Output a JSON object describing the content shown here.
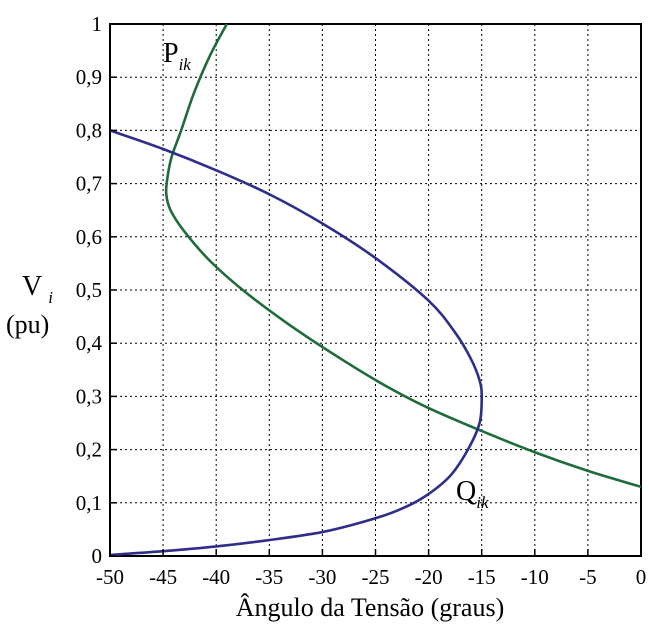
{
  "chart_data": {
    "type": "line",
    "xlabel": "Ângulo da Tensão (graus)",
    "ylabel": "V",
    "ylabel_sub": "i",
    "ylabel_unit": "(pu)",
    "xlim": [
      -50,
      0
    ],
    "ylim": [
      0,
      1
    ],
    "x_ticks": [
      "-50",
      "-45",
      "-40",
      "-35",
      "-30",
      "-25",
      "-20",
      "-15",
      "-10",
      "-5",
      "0"
    ],
    "y_ticks": [
      "0",
      "0,1",
      "0,2",
      "0,3",
      "0,4",
      "0,5",
      "0,6",
      "0,7",
      "0,8",
      "0,9",
      "1"
    ],
    "grid": true,
    "series": [
      {
        "name": "P",
        "name_sub": "ik",
        "color": "#1f6b3a",
        "points": [
          [
            -39,
            1.0
          ],
          [
            -40.6,
            0.94
          ],
          [
            -42.1,
            0.87
          ],
          [
            -43.3,
            0.8
          ],
          [
            -44.2,
            0.75
          ],
          [
            -44.6,
            0.71
          ],
          [
            -44.7,
            0.68
          ],
          [
            -44.3,
            0.65
          ],
          [
            -43.0,
            0.61
          ],
          [
            -40.6,
            0.555
          ],
          [
            -37.5,
            0.5
          ],
          [
            -33.5,
            0.44
          ],
          [
            -29.0,
            0.38
          ],
          [
            -24.5,
            0.325
          ],
          [
            -20.2,
            0.28
          ],
          [
            -15.0,
            0.235
          ],
          [
            -10.0,
            0.195
          ],
          [
            -5.0,
            0.16
          ],
          [
            0.0,
            0.13
          ]
        ]
      },
      {
        "name": "Q",
        "name_sub": "ik",
        "color": "#2e2e8a",
        "points": [
          [
            -50,
            0.8
          ],
          [
            -45,
            0.765
          ],
          [
            -40,
            0.725
          ],
          [
            -35,
            0.68
          ],
          [
            -30,
            0.625
          ],
          [
            -25,
            0.56
          ],
          [
            -20,
            0.48
          ],
          [
            -17.5,
            0.42
          ],
          [
            -16.0,
            0.37
          ],
          [
            -15.2,
            0.33
          ],
          [
            -15.0,
            0.3
          ],
          [
            -15.2,
            0.25
          ],
          [
            -16.3,
            0.2
          ],
          [
            -18.0,
            0.15
          ],
          [
            -20.5,
            0.11
          ],
          [
            -23.0,
            0.085
          ],
          [
            -26.0,
            0.065
          ],
          [
            -30.0,
            0.045
          ],
          [
            -35.0,
            0.03
          ],
          [
            -40.0,
            0.018
          ],
          [
            -45.0,
            0.009
          ],
          [
            -50.0,
            0.002
          ]
        ]
      }
    ]
  }
}
